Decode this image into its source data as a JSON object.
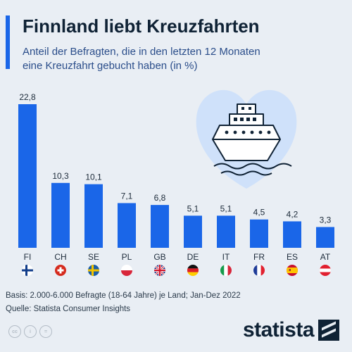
{
  "header": {
    "title": "Finnland liebt Kreuzfahrten",
    "subtitle_line1": "Anteil der Befragten, die in den letzten 12 Monaten",
    "subtitle_line2": "eine Kreuzfahrt gebucht haben (in %)"
  },
  "chart_data": {
    "type": "bar",
    "title": "Finnland liebt Kreuzfahrten",
    "subtitle": "Anteil der Befragten, die in den letzten 12 Monaten eine Kreuzfahrt gebucht haben (in %)",
    "categories": [
      "FI",
      "CH",
      "SE",
      "PL",
      "GB",
      "DE",
      "IT",
      "FR",
      "ES",
      "AT"
    ],
    "values": [
      22.8,
      10.3,
      10.1,
      7.1,
      6.8,
      5.1,
      5.1,
      4.5,
      4.2,
      3.3
    ],
    "value_labels": [
      "22,8",
      "10,3",
      "10,1",
      "7,1",
      "6,8",
      "5,1",
      "5,1",
      "4,5",
      "4,2",
      "3,3"
    ],
    "flags": [
      "finland-flag",
      "switzerland-flag",
      "sweden-flag",
      "poland-flag",
      "uk-flag",
      "germany-flag",
      "italy-flag",
      "france-flag",
      "spain-flag",
      "austria-flag"
    ],
    "ylim": [
      0,
      22.8
    ],
    "grid": false,
    "bar_color": "#1a66e8",
    "illustration": "cruise-ship-heart-icon"
  },
  "footer": {
    "basis": "Basis: 2.000-6.000 Befragte (18-64 Jahre) je Land; Jan-Dez 2022",
    "source": "Quelle: Statista Consumer Insights"
  },
  "brand": {
    "logo_text": "statista",
    "license_icons": [
      "cc-icon",
      "by-icon",
      "nd-icon"
    ]
  },
  "colors": {
    "background": "#e9eef4",
    "accent": "#1a66e8",
    "title": "#0f2235",
    "subtitle": "#2a4d8a",
    "illustration": "#cfe1fa"
  }
}
